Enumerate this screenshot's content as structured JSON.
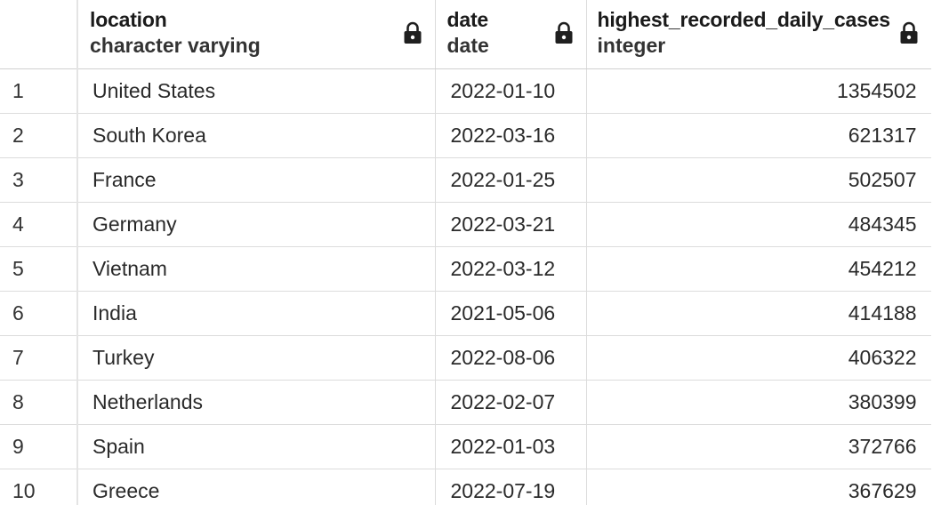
{
  "columns": [
    {
      "name": "location",
      "type": "character varying",
      "icon": "lock-icon"
    },
    {
      "name": "date",
      "type": "date",
      "icon": "lock-icon"
    },
    {
      "name": "highest_recorded_daily_cases",
      "type": "integer",
      "icon": "lock-icon"
    }
  ],
  "rows": [
    {
      "index": "1",
      "location": "United States",
      "date": "2022-01-10",
      "cases": "1354502"
    },
    {
      "index": "2",
      "location": "South Korea",
      "date": "2022-03-16",
      "cases": "621317"
    },
    {
      "index": "3",
      "location": "France",
      "date": "2022-01-25",
      "cases": "502507"
    },
    {
      "index": "4",
      "location": "Germany",
      "date": "2022-03-21",
      "cases": "484345"
    },
    {
      "index": "5",
      "location": "Vietnam",
      "date": "2022-03-12",
      "cases": "454212"
    },
    {
      "index": "6",
      "location": "India",
      "date": "2021-05-06",
      "cases": "414188"
    },
    {
      "index": "7",
      "location": "Turkey",
      "date": "2022-08-06",
      "cases": "406322"
    },
    {
      "index": "8",
      "location": "Netherlands",
      "date": "2022-02-07",
      "cases": "380399"
    },
    {
      "index": "9",
      "location": "Spain",
      "date": "2022-01-03",
      "cases": "372766"
    },
    {
      "index": "10",
      "location": "Greece",
      "date": "2022-07-19",
      "cases": "367629"
    }
  ]
}
